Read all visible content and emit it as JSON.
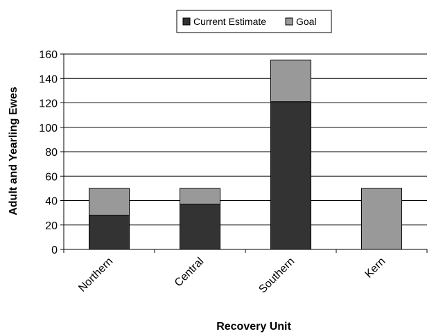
{
  "chart_data": {
    "type": "bar",
    "stacked": true,
    "categories": [
      "Northern",
      "Central",
      "Southern",
      "Kern"
    ],
    "series": [
      {
        "name": "Current Estimate",
        "values": [
          28,
          37,
          121,
          0
        ],
        "color": "#333333"
      },
      {
        "name": "Goal",
        "values": [
          22,
          13,
          34,
          50
        ],
        "color": "#999999"
      }
    ],
    "totals": [
      50,
      50,
      155,
      50
    ],
    "xlabel": "Recovery Unit",
    "ylabel": "Adult and Yearling Ewes",
    "ylim": [
      0,
      160
    ],
    "yticks": [
      0,
      20,
      40,
      60,
      80,
      100,
      120,
      140,
      160
    ],
    "grid": true,
    "legend_placement": "top"
  }
}
